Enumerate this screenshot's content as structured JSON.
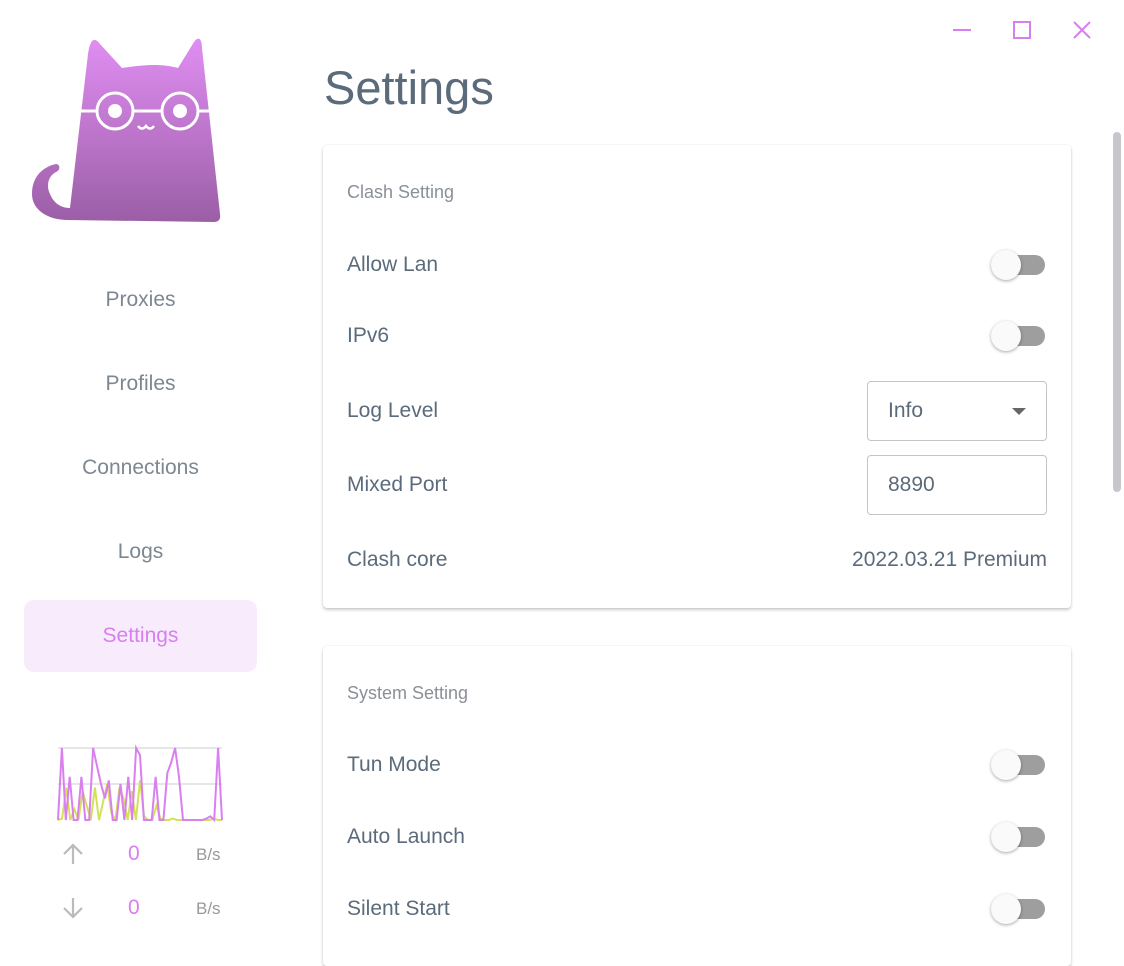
{
  "window": {
    "controls": [
      "minimize",
      "maximize",
      "close"
    ]
  },
  "sidebar": {
    "items": [
      {
        "label": "Proxies"
      },
      {
        "label": "Profiles"
      },
      {
        "label": "Connections"
      },
      {
        "label": "Logs"
      },
      {
        "label": "Settings",
        "active": true
      }
    ],
    "traffic": {
      "upload": {
        "value": "0",
        "unit": "B/s"
      },
      "download": {
        "value": "0",
        "unit": "B/s"
      },
      "colors": {
        "upload": "#d4e157",
        "download": "#da7ff0"
      },
      "series_up": [
        0,
        2,
        45,
        0,
        15,
        0,
        40,
        20,
        0,
        45,
        0,
        25,
        50,
        10,
        0,
        45,
        30,
        0,
        40,
        0,
        55,
        5,
        0,
        0,
        20,
        2,
        0,
        0,
        2,
        0,
        0,
        0,
        0,
        0,
        0,
        0,
        0,
        0,
        2,
        0,
        0
      ],
      "series_down": [
        0,
        100,
        0,
        60,
        0,
        0,
        60,
        0,
        0,
        100,
        75,
        50,
        30,
        55,
        0,
        0,
        50,
        0,
        60,
        0,
        100,
        90,
        0,
        0,
        0,
        60,
        0,
        0,
        65,
        80,
        100,
        60,
        0,
        0,
        0,
        0,
        0,
        0,
        2,
        5,
        0,
        100,
        0
      ]
    }
  },
  "page": {
    "title": "Settings"
  },
  "clash": {
    "title": "Clash Setting",
    "allow_lan": {
      "label": "Allow Lan",
      "on": false
    },
    "ipv6": {
      "label": "IPv6",
      "on": false
    },
    "log_level": {
      "label": "Log Level",
      "value": "Info"
    },
    "mixed_port": {
      "label": "Mixed Port",
      "value": "8890"
    },
    "core": {
      "label": "Clash core",
      "value": "2022.03.21 Premium"
    }
  },
  "system": {
    "title": "System Setting",
    "tun": {
      "label": "Tun Mode",
      "on": false
    },
    "auto_launch": {
      "label": "Auto Launch",
      "on": false
    },
    "silent_start": {
      "label": "Silent Start",
      "on": false
    }
  },
  "accent": "#d77ff0"
}
